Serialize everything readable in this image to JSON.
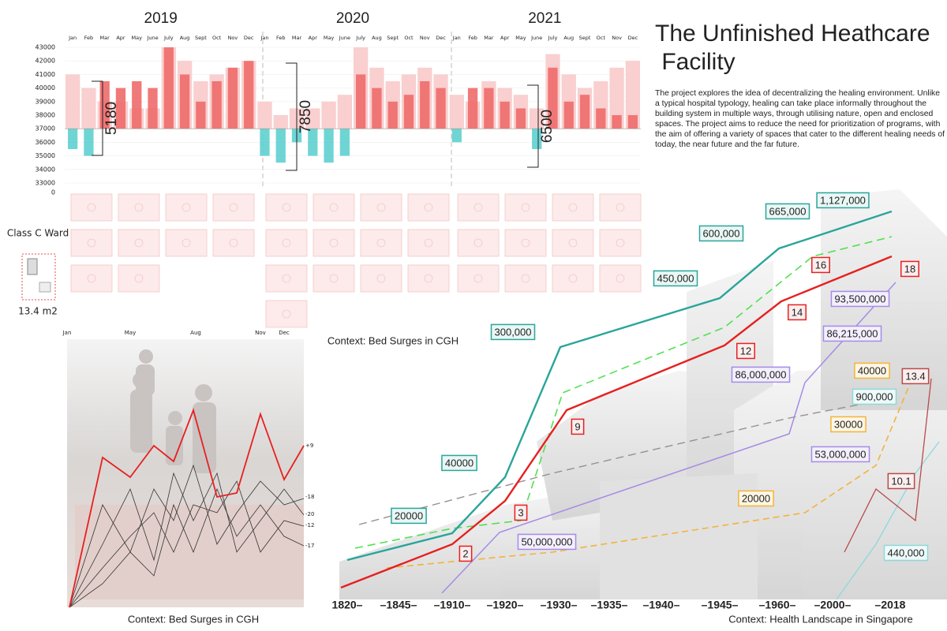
{
  "title": "The Unfinished Heathcare Facility",
  "description": "The project explores the idea of decentralizing the healing environment. Unlike a typical hospital typology, healing can take place informally throughout the building system in multiple ways, through utilising nature, open and enclosed spaces. The project aims to reduce the need for prioritization of programs, with the aim of offering a variety of spaces that cater to the different healing needs of today, the near future and the far future.",
  "bed_chart": {
    "years": [
      "2019",
      "2020",
      "2021"
    ],
    "months": [
      "Jan",
      "Feb",
      "Mar",
      "Apr",
      "May",
      "June",
      "July",
      "Aug",
      "Sept",
      "Oct",
      "Nov",
      "Dec"
    ],
    "ylim": [
      33000,
      43000
    ],
    "yticks": [
      33000,
      34000,
      35000,
      36000,
      37000,
      38000,
      39000,
      40000,
      41000,
      42000,
      43000
    ],
    "axis_break_label": "0",
    "dark_values": [
      35500,
      35000,
      40500,
      40000,
      40500,
      40000,
      43000,
      41000,
      39000,
      40500,
      41500,
      42000,
      35000,
      34500,
      36000,
      35000,
      34500,
      35000,
      41000,
      40000,
      39000,
      39500,
      40500,
      40000,
      36000,
      40000,
      40000,
      39000,
      38500,
      35500,
      41500,
      39000,
      39500,
      38500,
      38000,
      38000
    ],
    "light_values": [
      41000,
      40000,
      39000,
      39000,
      38500,
      38500,
      43000,
      42000,
      40500,
      41000,
      41500,
      42000,
      39000,
      38000,
      38500,
      38500,
      39000,
      39500,
      43000,
      41500,
      40500,
      41000,
      41500,
      41000,
      39500,
      39000,
      40500,
      40000,
      39500,
      38500,
      42500,
      41000,
      40000,
      40500,
      41500,
      42000
    ],
    "surges": [
      "5180",
      "7850",
      "6500"
    ]
  },
  "ward": {
    "name": "Class C Ward",
    "area": "13.4 m2"
  },
  "captions": {
    "bed_surges": "Context: Bed Surges in CGH",
    "bed_surges_photo": "Context: Bed Surges in CGH",
    "landscape": "Context: Health Landscape in Singapore"
  },
  "variation_chart": {
    "months": [
      "Jan",
      "May",
      "Aug",
      "Nov",
      "Dec"
    ],
    "end_labels": [
      "+9",
      "-18",
      "-20",
      "-12",
      "-17"
    ]
  },
  "timeline": {
    "years": [
      "1820–",
      "–1845–",
      "–1910–",
      "–1920–",
      "–1930–",
      "–1935–",
      "–1940–",
      "–1945–",
      "–1960–",
      "–2000–",
      "–2018"
    ],
    "teal_labels": [
      "20000",
      "40000",
      "300,000",
      "450,000",
      "600,000",
      "665,000",
      "1,127,000"
    ],
    "red_labels": [
      "2",
      "3",
      "9",
      "12",
      "14",
      "16",
      "18"
    ],
    "purple_labels": [
      "50,000,000",
      "86,000,000",
      "86,215,000",
      "93,500,000",
      "53,000,000"
    ],
    "yellow_labels": [
      "20000",
      "30000",
      "40000"
    ],
    "light_teal_labels": [
      "900,000",
      "440,000"
    ],
    "dark_red_labels": [
      "13.4",
      "10.1"
    ]
  }
}
